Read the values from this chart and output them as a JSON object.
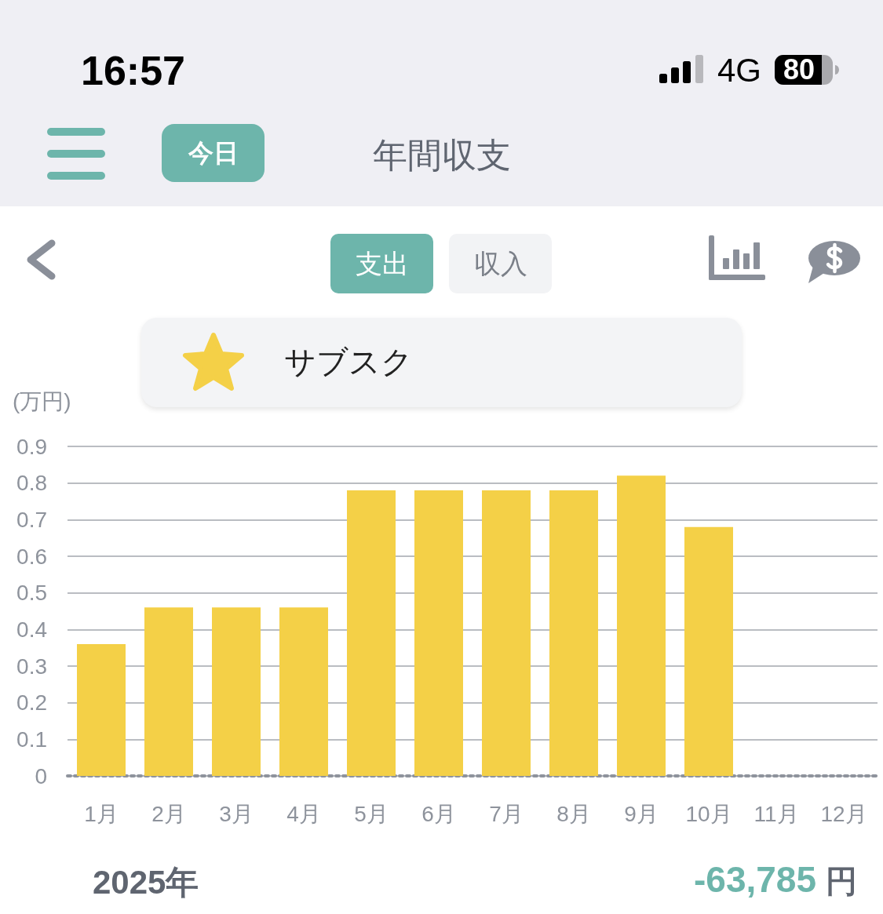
{
  "chart_data": {
    "type": "bar",
    "title": "年間収支",
    "subtitle": "サブスク",
    "ylabel": "(万円)",
    "categories": [
      "1月",
      "2月",
      "3月",
      "4月",
      "5月",
      "6月",
      "7月",
      "8月",
      "9月",
      "10月",
      "11月",
      "12月"
    ],
    "values": [
      0.36,
      0.46,
      0.46,
      0.46,
      0.78,
      0.78,
      0.78,
      0.78,
      0.82,
      0.68,
      null,
      null
    ],
    "color": "#f4d047",
    "ylim": [
      0,
      0.9
    ],
    "yticks": [
      0,
      0.1,
      0.2,
      0.3,
      0.4,
      0.5,
      0.6,
      0.7,
      0.8,
      0.9
    ],
    "grid": "y",
    "annotations": [
      "16:57",
      "4G",
      "80",
      "今日",
      "支出",
      "収入",
      "2025年",
      "-63,785",
      "円"
    ]
  }
}
